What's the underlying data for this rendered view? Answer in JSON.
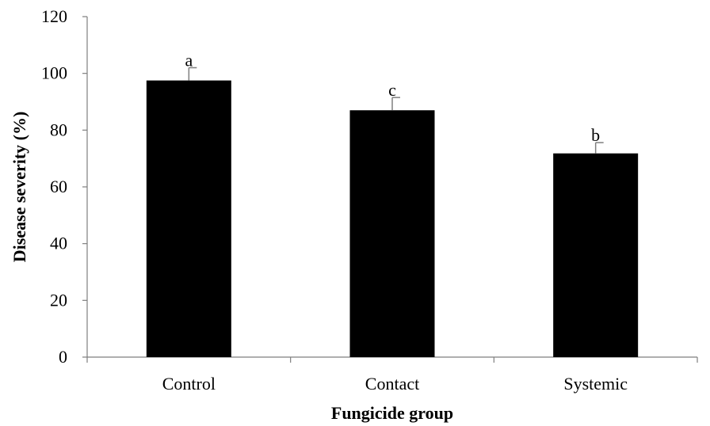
{
  "chart_data": {
    "type": "bar",
    "categories": [
      "Control",
      "Contact",
      "Systemic"
    ],
    "values": [
      97.5,
      87,
      71.8
    ],
    "errors": [
      4.5,
      4.5,
      3.8
    ],
    "significance_letters": [
      "a",
      "c",
      "b"
    ],
    "xlabel": "Fungicide group",
    "ylabel": "Disease severity (%)",
    "ylim": [
      0,
      120
    ],
    "yticks": [
      "0",
      "20",
      "40",
      "60",
      "80",
      "100",
      "120"
    ],
    "grid": false,
    "legend": "none",
    "colors": {
      "bar": "#000000",
      "axis": "#7f7f7f"
    }
  }
}
